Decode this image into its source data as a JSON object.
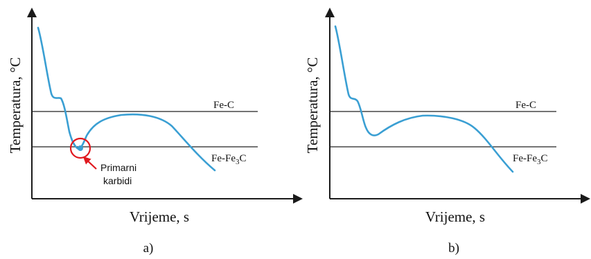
{
  "chart_data": [
    {
      "type": "line",
      "xlabel": "Vrijeme, s",
      "ylabel": "Temperatura, °C",
      "reference_lines": [
        {
          "name": "Fe-C",
          "label": "Fe-C"
        },
        {
          "name": "Fe-Fe3C",
          "label_base": "Fe-Fe",
          "label_sub": "3",
          "label_tail": "C"
        }
      ],
      "series": [
        {
          "name": "",
          "curve": "a"
        }
      ],
      "annotation": {
        "line1": "Primarni",
        "line2": "karbidi"
      },
      "panel_label": "a)"
    },
    {
      "type": "line",
      "xlabel": "Vrijeme, s",
      "ylabel": "Temperatura, °C",
      "reference_lines": [
        {
          "name": "Fe-C",
          "label": "Fe-C"
        },
        {
          "name": "Fe-Fe3C",
          "label_base": "Fe-Fe",
          "label_sub": "3",
          "label_tail": "C"
        }
      ],
      "series": [
        {
          "name": "",
          "curve": "b"
        }
      ],
      "panel_label": "b)"
    }
  ],
  "colors": {
    "curve": "#3a9fd3",
    "annotation": "#e0191f",
    "axis": "#1a1a1a",
    "text": "#111111"
  }
}
